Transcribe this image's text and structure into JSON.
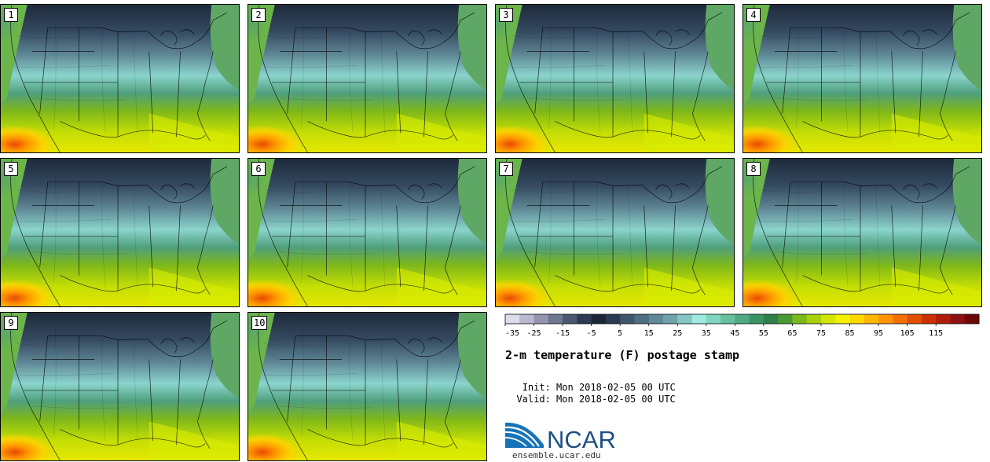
{
  "title": "2-m temperature (F) postage stamp",
  "init_label": "Init:",
  "init_value": "Mon 2018-02-05 00 UTC",
  "valid_label": "Valid:",
  "valid_value": "Mon 2018-02-05 00 UTC",
  "ncar_logo_text": "NCAR",
  "ncar_url": "ensemble.ucar.edu",
  "members": [
    "1",
    "2",
    "3",
    "4",
    "5",
    "6",
    "7",
    "8",
    "9",
    "10"
  ],
  "colorbar": {
    "tick_labels": [
      "-35",
      "-25",
      "-15",
      "-5",
      "5",
      "15",
      "25",
      "35",
      "45",
      "55",
      "65",
      "75",
      "85",
      "95",
      "105",
      "115"
    ],
    "colors": [
      "#dcdce8",
      "#b9b9cf",
      "#9595b2",
      "#6f7690",
      "#4b5670",
      "#2e3a52",
      "#1b2638",
      "#2a3b51",
      "#3d566b",
      "#4e6f81",
      "#5e8996",
      "#6ea3aa",
      "#84c6c3",
      "#9eeadf",
      "#7fd6be",
      "#66c09e",
      "#4fa982",
      "#3b9466",
      "#2e8048",
      "#4a9a34",
      "#7bb81a",
      "#a8d10a",
      "#d4e600",
      "#f4f000",
      "#ffd800",
      "#ffb600",
      "#ff9400",
      "#f57000",
      "#e34e00",
      "#cc3000",
      "#b01c0c",
      "#8f1010",
      "#6e0808"
    ]
  }
}
